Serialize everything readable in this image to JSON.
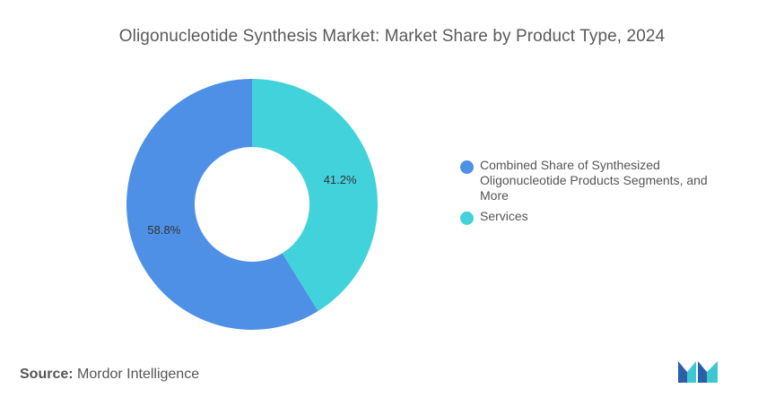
{
  "title": "Oligonucleotide Synthesis Market: Market Share by Product Type, 2024",
  "chart_data": {
    "type": "pie",
    "donut": true,
    "title": "Oligonucleotide Synthesis Market: Market Share by Product Type, 2024",
    "legend_position": "right",
    "slices": [
      {
        "name": "Combined Share of Synthesized Oligonucleotide Products Segments, and More",
        "value": 58.8,
        "label": "58.8%",
        "color": "#4e90e6"
      },
      {
        "name": "Services",
        "value": 41.2,
        "label": "41.2%",
        "color": "#42d2dc"
      }
    ]
  },
  "source": {
    "label": "Source:",
    "text": "Mordor Intelligence"
  },
  "logo": {
    "icon": "mordor-intelligence-logo-icon",
    "colors": [
      "#2b5fa8",
      "#3fc7cf"
    ]
  }
}
